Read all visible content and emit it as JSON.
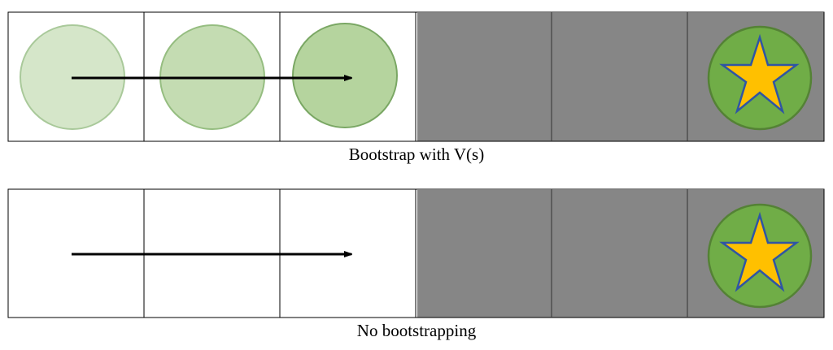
{
  "panels": [
    {
      "caption": "Bootstrap with V(s)",
      "show_intermediate_states": true
    },
    {
      "caption": "No bootstrapping",
      "show_intermediate_states": false
    }
  ],
  "colors": {
    "state1": "#d5e6c9",
    "state2": "#c4dcb2",
    "state3": "#b5d49e",
    "terminal_cell": "#868686",
    "goal_circle": "#70ad47",
    "star": "#ffc000",
    "star_outline": "#2f55a4"
  },
  "icons": {
    "goal": "star-icon",
    "transition": "arrow-right-icon"
  }
}
